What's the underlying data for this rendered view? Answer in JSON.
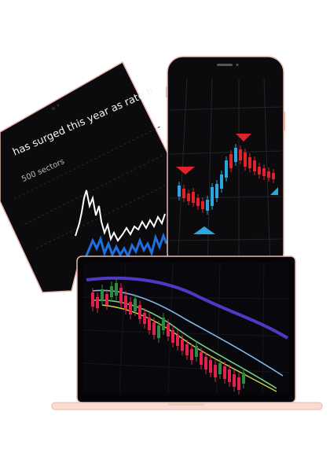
{
  "tablet": {
    "headline": "has surged this year as rate h",
    "subline": "500 sectors"
  },
  "colors": {
    "device_body": "#0b0b0d",
    "bezel_border": "#e8b7b0",
    "candle_up": "#2aa6e0",
    "candle_down": "#e0222b",
    "laptop_base": "#f7dccf"
  }
}
